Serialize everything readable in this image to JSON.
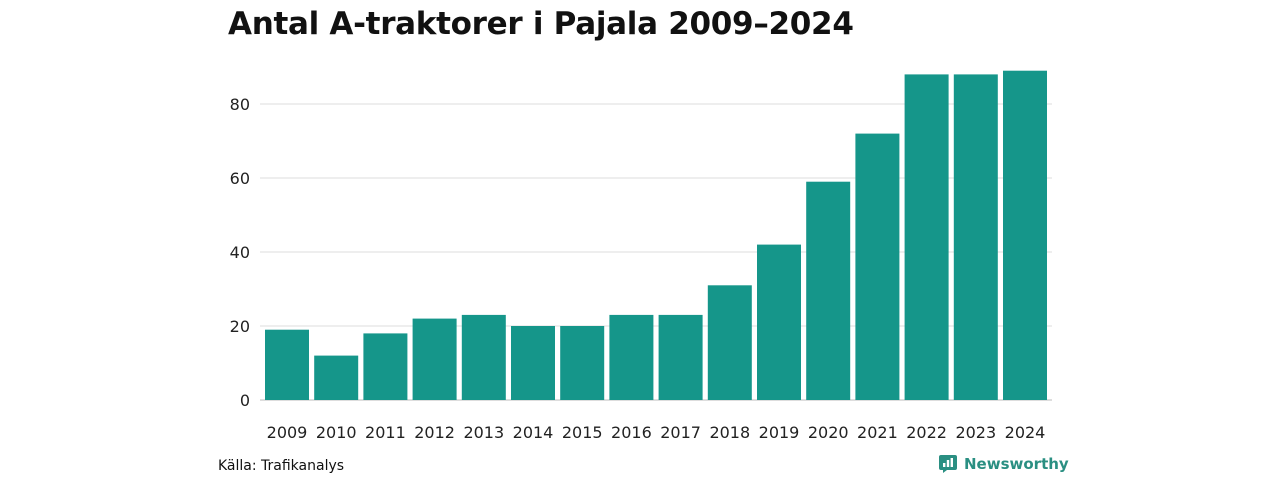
{
  "title": "Antal A-traktorer i Pajala 2009–2024",
  "source": "Källa: Trafikanalys",
  "brand": {
    "name": "Newsworthy",
    "icon": "newsworthy-logo-icon",
    "color": "#2a8f82"
  },
  "colors": {
    "bar": "#15968a",
    "grid": "#dddddd",
    "axis": "#bbbbbb"
  },
  "chart_data": {
    "type": "bar",
    "title": "Antal A-traktorer i Pajala 2009–2024",
    "xlabel": "",
    "ylabel": "",
    "categories": [
      "2009",
      "2010",
      "2011",
      "2012",
      "2013",
      "2014",
      "2015",
      "2016",
      "2017",
      "2018",
      "2019",
      "2020",
      "2021",
      "2022",
      "2023",
      "2024"
    ],
    "values": [
      19,
      12,
      18,
      22,
      23,
      20,
      20,
      23,
      23,
      31,
      42,
      59,
      72,
      88,
      88,
      89
    ],
    "ylim": [
      0,
      90
    ],
    "yticks": [
      0,
      20,
      40,
      60,
      80
    ],
    "grid": true,
    "legend": "none"
  }
}
